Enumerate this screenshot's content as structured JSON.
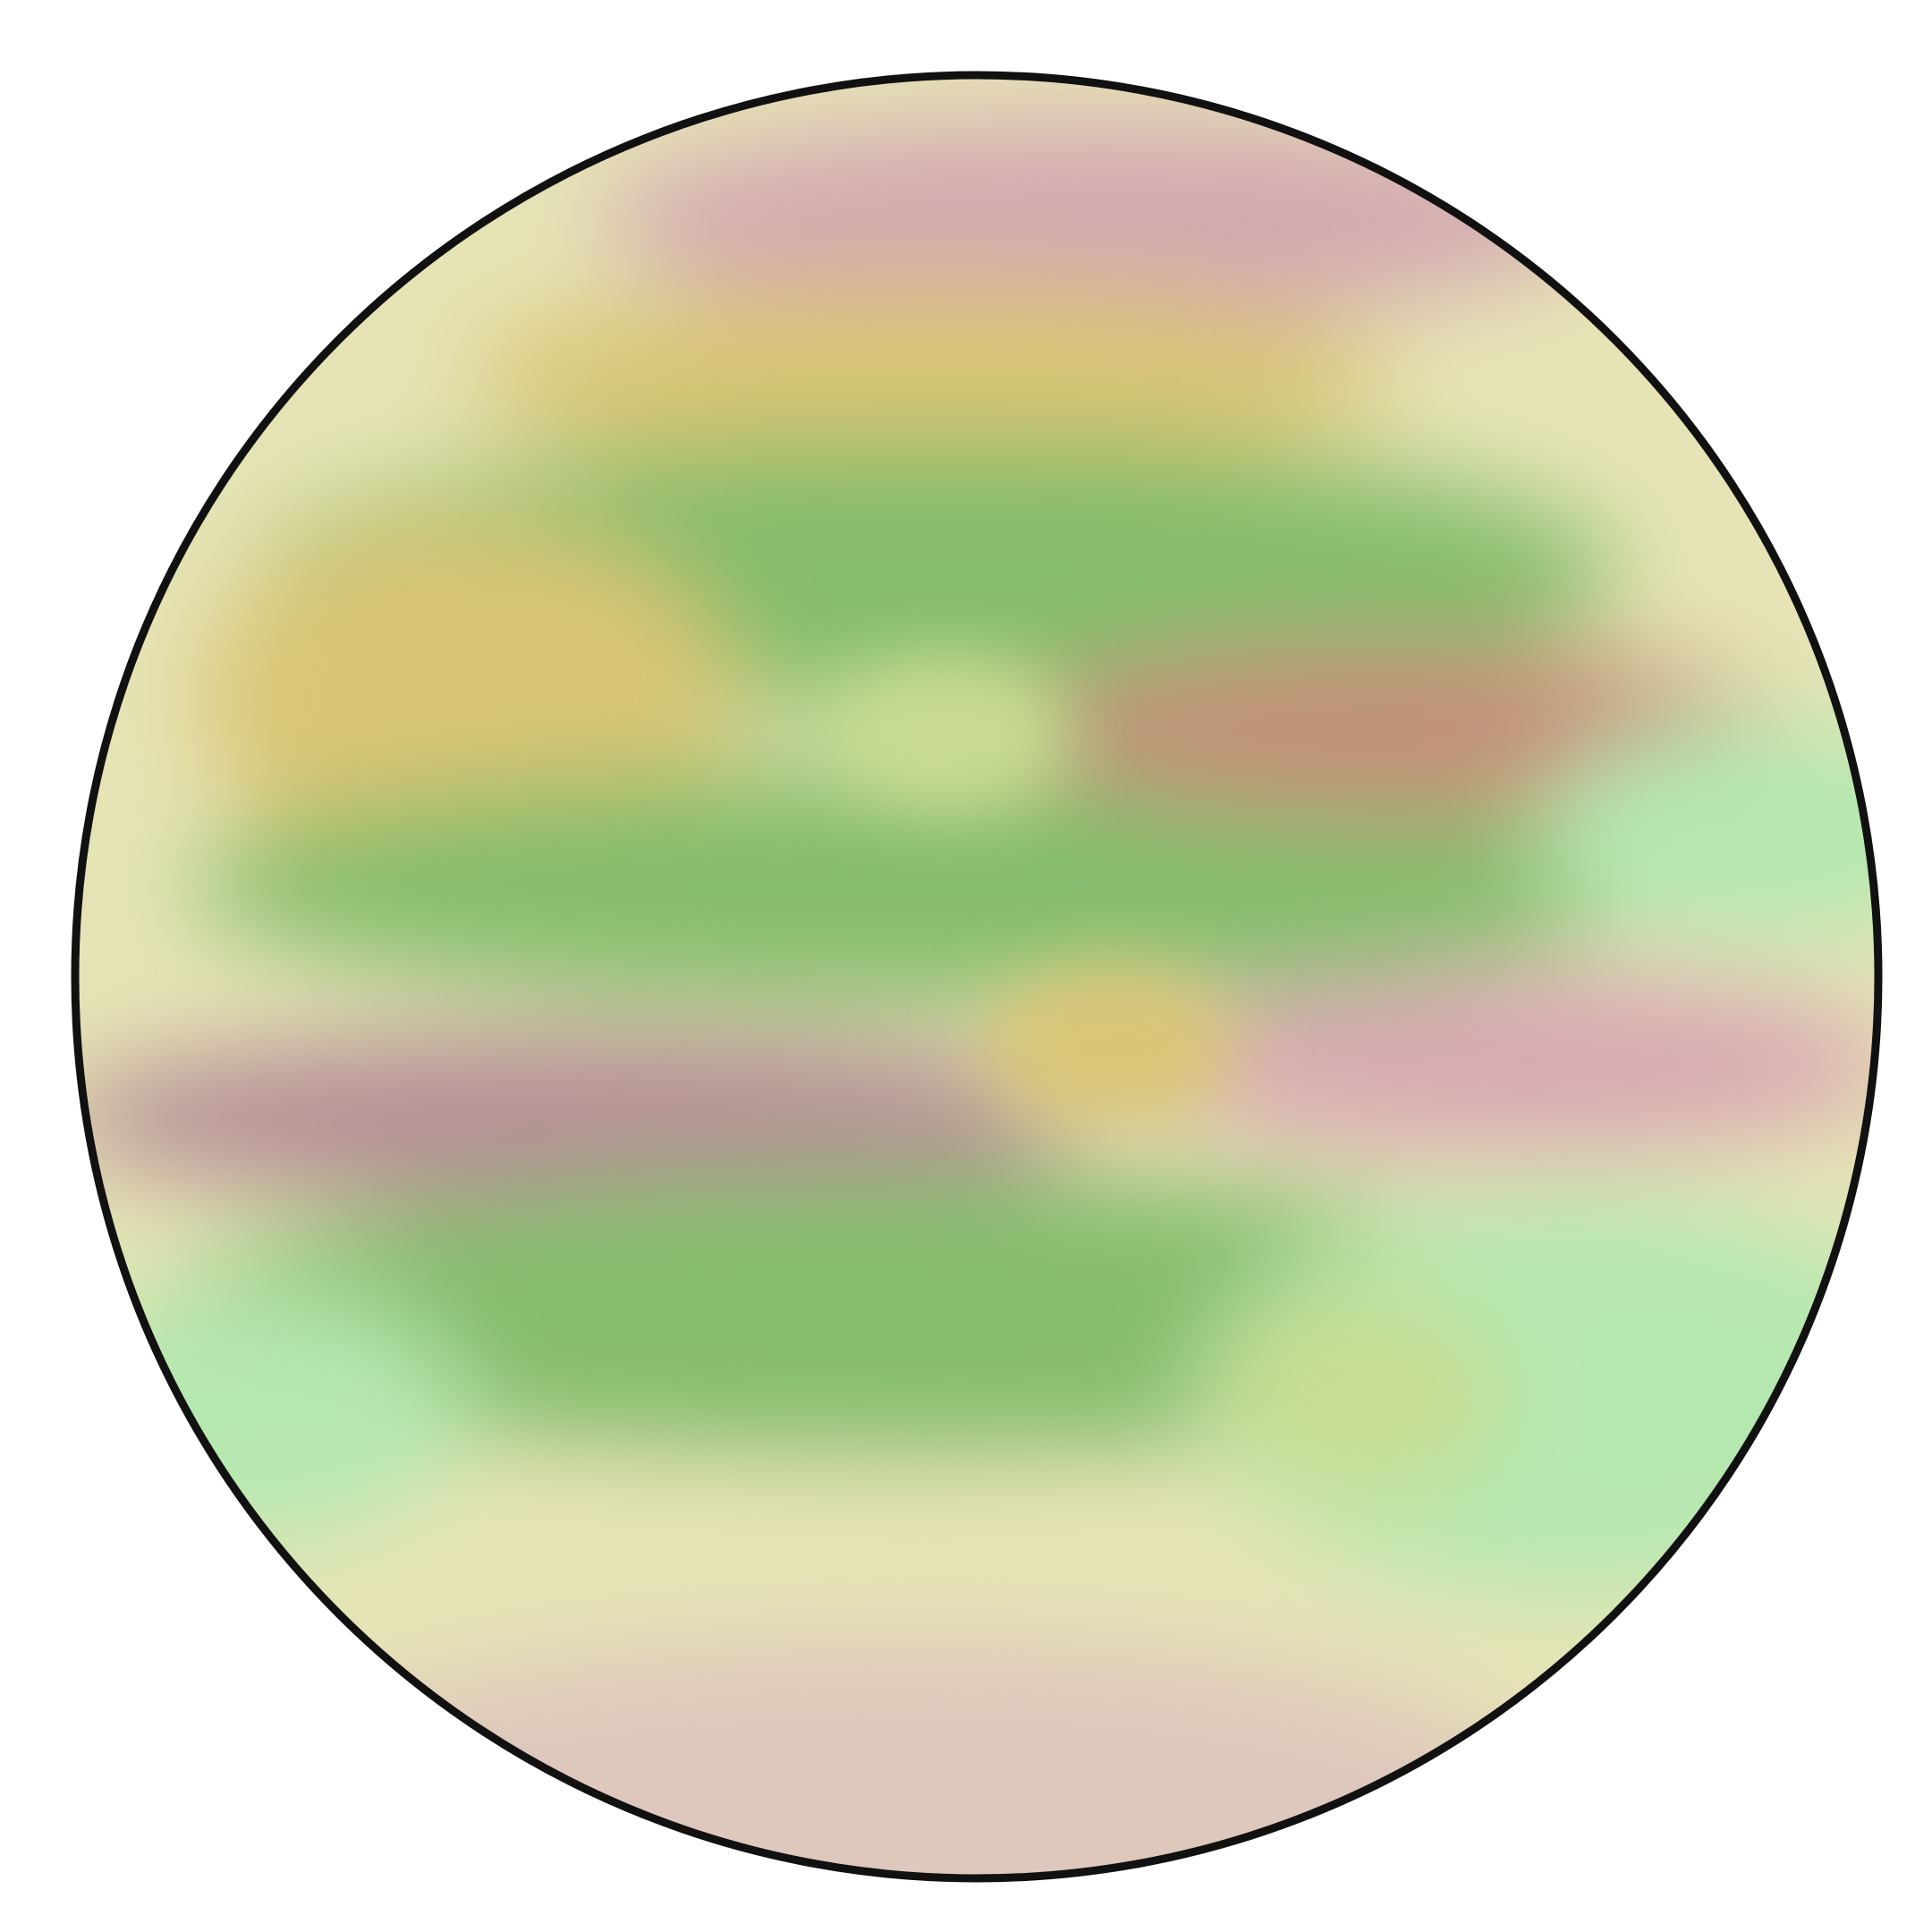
{
  "image": {
    "subject": "banded-planet-disc",
    "colors": {
      "background": "#ffffff",
      "outline": "#111111",
      "pale_yellow": "#e6e4b6",
      "mauve": "#d3a9b1",
      "ochre": "#d9c574",
      "green": "#86bd6d",
      "mint": "#b5e8b0",
      "brick": "#c4907a",
      "plum": "#b68f96",
      "rose_pink": "#d8a9b2",
      "lime": "#c9dc90",
      "tan_pink": "#dec7bc"
    }
  }
}
